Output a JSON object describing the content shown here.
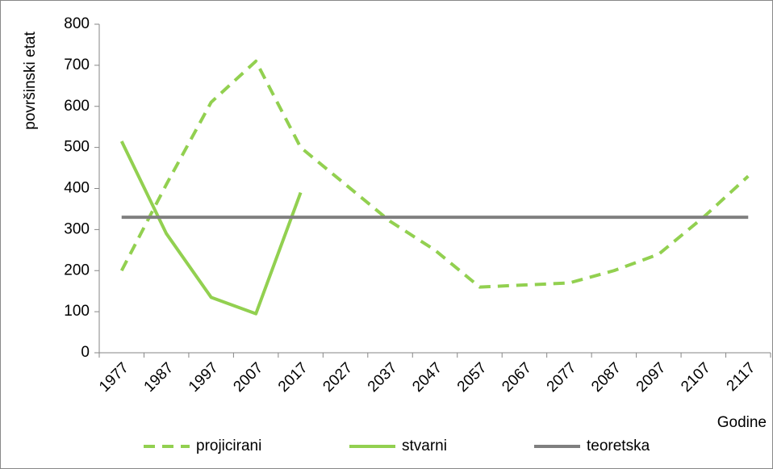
{
  "chart_data": {
    "type": "line",
    "y_label": "površinski etat",
    "x_label": "Godine",
    "categories": [
      "1977",
      "1987",
      "1997",
      "2007",
      "2017",
      "2027",
      "2037",
      "2047",
      "2057",
      "2067",
      "2077",
      "2087",
      "2097",
      "2107",
      "2117"
    ],
    "series": [
      {
        "name": "projicirani",
        "color": "#92d050",
        "style": "dashed",
        "values": [
          200,
          410,
          610,
          710,
          500,
          410,
          320,
          250,
          160,
          165,
          170,
          200,
          240,
          330,
          430
        ]
      },
      {
        "name": "stvarni",
        "color": "#92d050",
        "style": "solid",
        "values": [
          515,
          290,
          135,
          95,
          390,
          null,
          null,
          null,
          null,
          null,
          null,
          null,
          null,
          null,
          null
        ]
      },
      {
        "name": "teoretska",
        "color": "#7f7f7f",
        "style": "solid",
        "values": [
          330,
          330,
          330,
          330,
          330,
          330,
          330,
          330,
          330,
          330,
          330,
          330,
          330,
          330,
          330
        ]
      }
    ],
    "ylim": [
      0,
      800
    ],
    "yticks": [
      0,
      100,
      200,
      300,
      400,
      500,
      600,
      700,
      800
    ],
    "grid": false,
    "legend": "bottom"
  }
}
